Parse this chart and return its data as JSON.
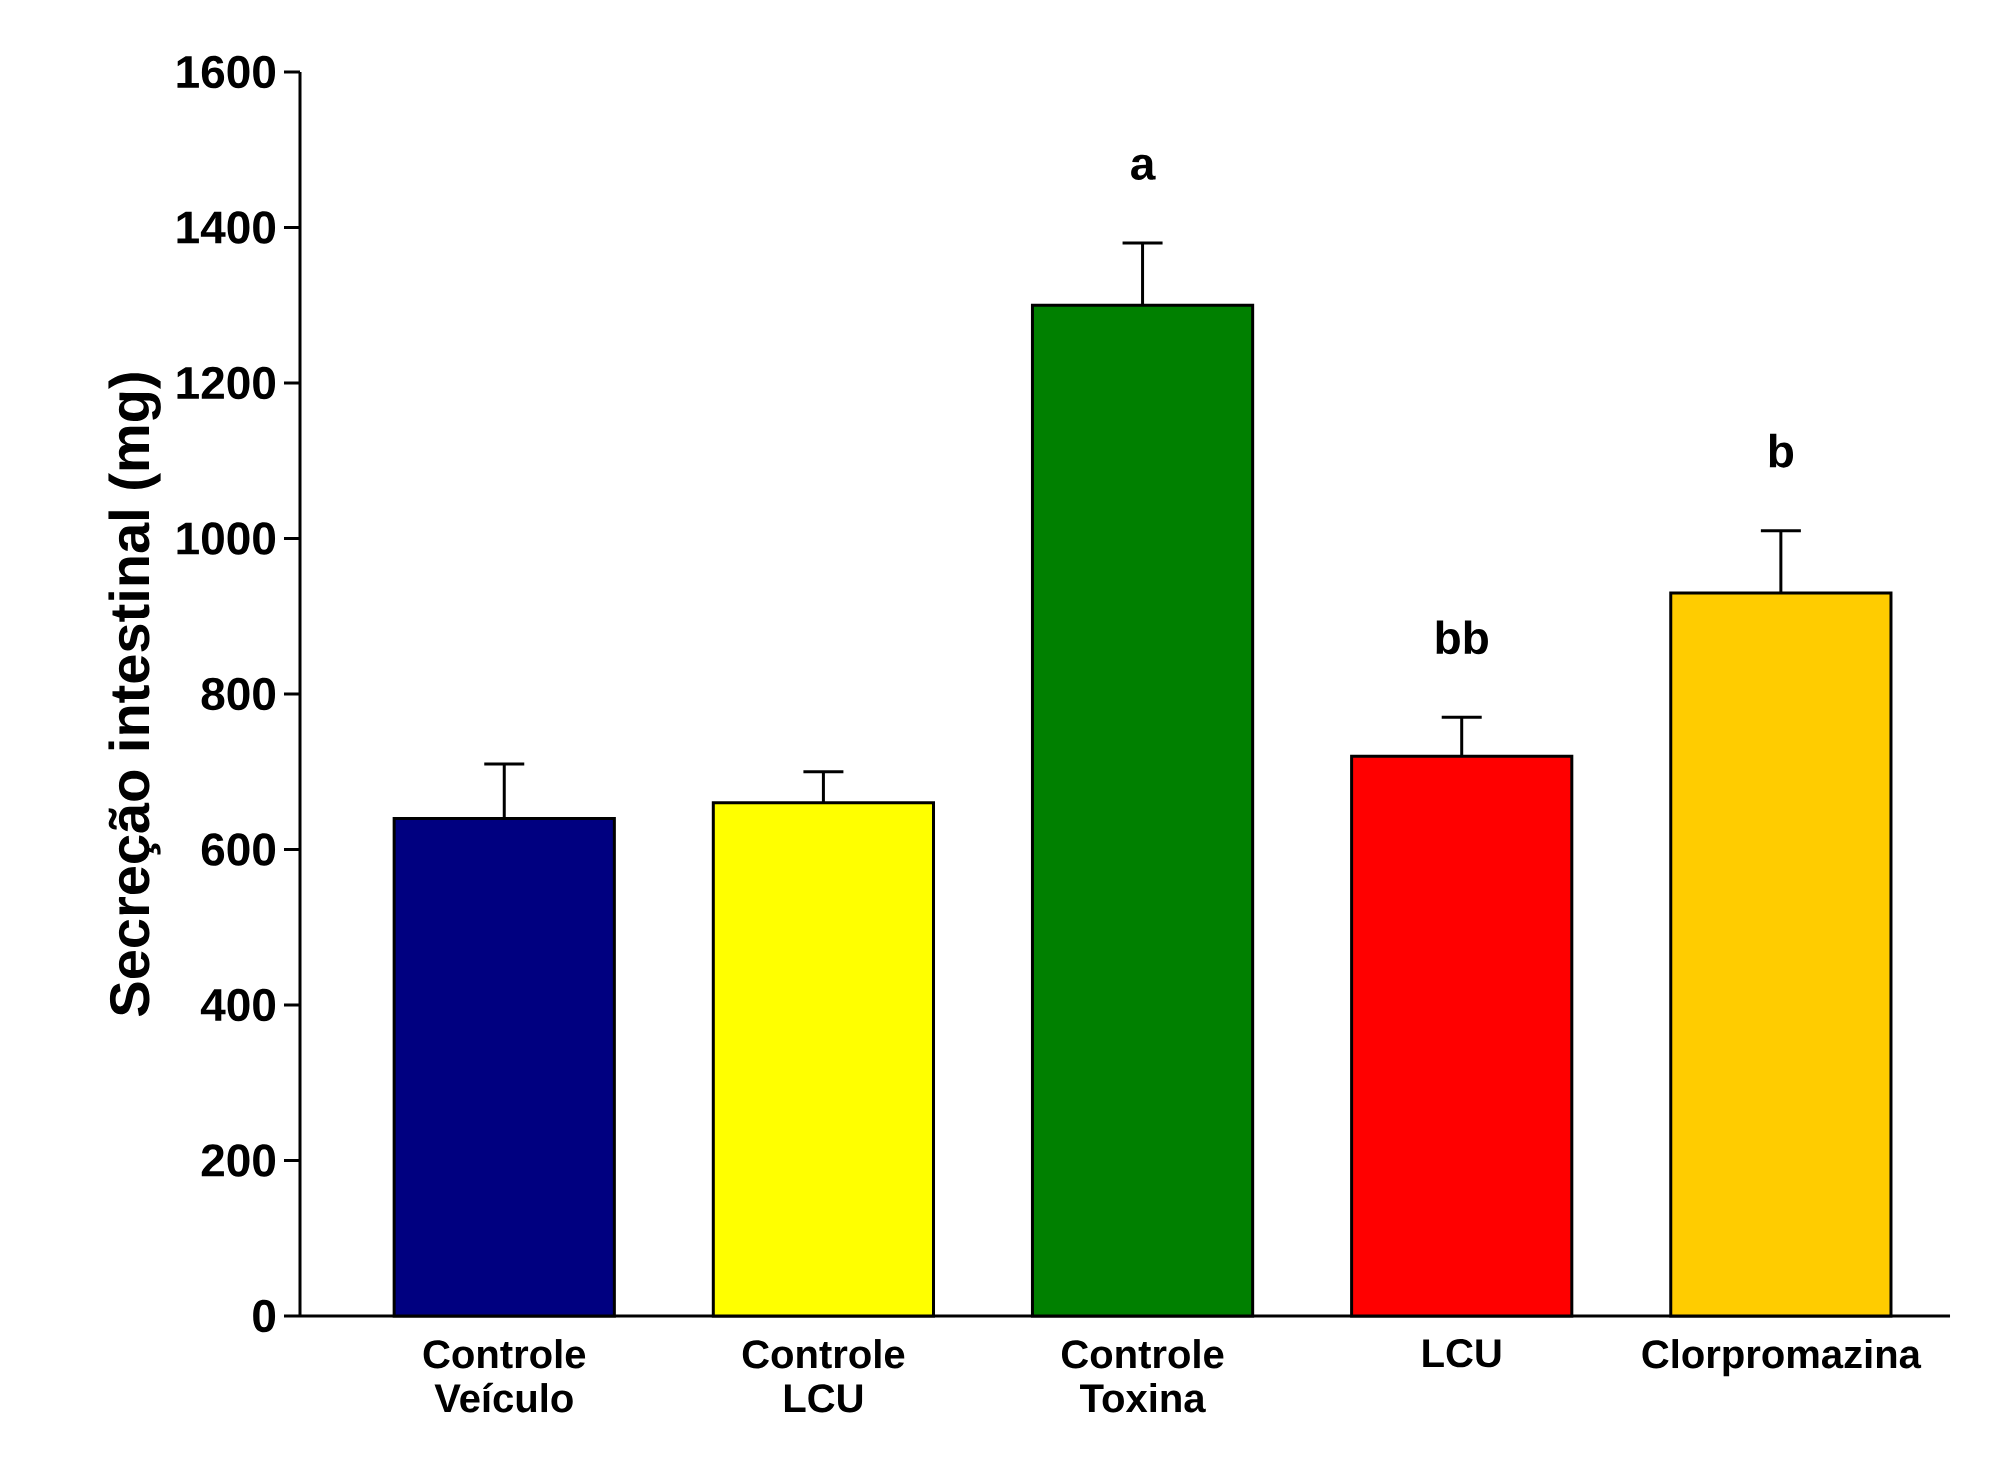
{
  "chart_data": {
    "type": "bar",
    "ylabel": "Secreção intestinal (mg)",
    "categories": [
      "Controle Veículo",
      "Controle LCU",
      "Controle Toxina",
      "LCU",
      "Clorpromazina"
    ],
    "values": [
      640,
      660,
      1300,
      720,
      930
    ],
    "errors": [
      70,
      40,
      80,
      50,
      80
    ],
    "colors": [
      "#000080",
      "#ffff00",
      "#008000",
      "#ff0000",
      "#ffcc00"
    ],
    "ylim": [
      0,
      1600
    ],
    "yticks": [
      0,
      200,
      400,
      600,
      800,
      1000,
      1200,
      1400,
      1600
    ],
    "grid": false,
    "annotations": [
      {
        "text": "a",
        "x": "Controle Toxina",
        "y": 1380
      },
      {
        "text": "bb",
        "x": "LCU",
        "y": 770
      },
      {
        "text": "b",
        "x": "Clorpromazina",
        "y": 1010
      }
    ]
  }
}
